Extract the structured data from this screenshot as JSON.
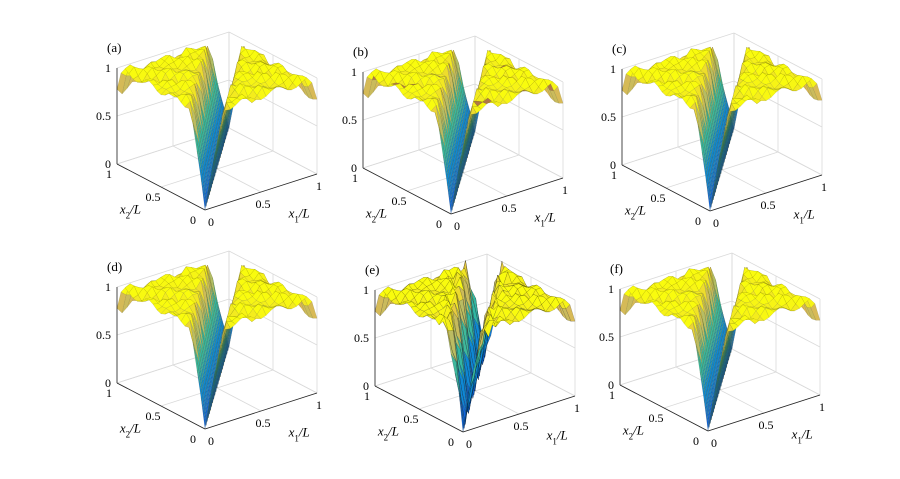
{
  "figure": {
    "panels": [
      {
        "label": "(a)",
        "variant": "smooth"
      },
      {
        "label": "(b)",
        "variant": "brown-ridges"
      },
      {
        "label": "(c)",
        "variant": "smooth"
      },
      {
        "label": "(d)",
        "variant": "smooth"
      },
      {
        "label": "(e)",
        "variant": "noisy"
      },
      {
        "label": "(f)",
        "variant": "smooth"
      }
    ]
  },
  "chart_data": {
    "type": "surface",
    "colormap": "parula",
    "xlabel": "x_1/L",
    "ylabel": "x_2/L",
    "x_ticks": [
      "0",
      "0.5",
      "1"
    ],
    "y_ticks": [
      "0",
      "0.5",
      "1"
    ],
    "z_ticks": [
      "0",
      "0.5",
      "1"
    ],
    "xlim": [
      0,
      1
    ],
    "ylim": [
      0,
      1
    ],
    "zlim": [
      0,
      1
    ],
    "grid": true
  }
}
